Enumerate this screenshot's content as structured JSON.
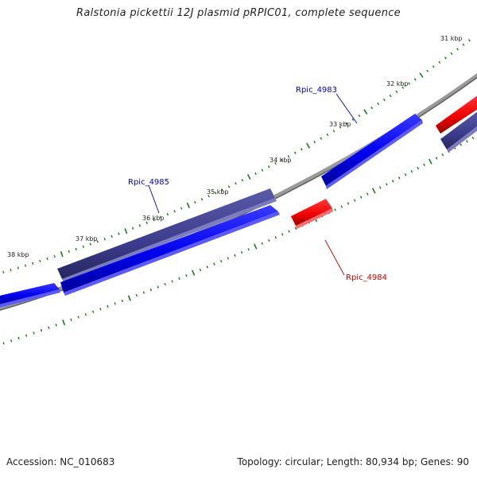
{
  "header": {
    "title": "Ralstonia pickettii 12J plasmid pRPIC01, complete sequence"
  },
  "footer": {
    "accession": "Accession: NC_010683",
    "topology": "Topology: circular; Length: 80,934 bp; Genes: 90"
  },
  "map": {
    "tick_labels": [
      "31 kbp",
      "32 kbp",
      "33 kbp",
      "34 kbp",
      "35 kbp",
      "36 kbp",
      "37 kbp",
      "38 kbp"
    ],
    "features": [
      {
        "label": "Rpic_4983",
        "strand": "forward",
        "color": "#0000ff"
      },
      {
        "label": "Rpic_4984",
        "strand": "reverse",
        "color": "#ff0000"
      },
      {
        "label": "Rpic_4985",
        "strand": "forward",
        "color": "#0000ff"
      }
    ],
    "colors": {
      "forward_cds": "#0000ff",
      "reverse_cds": "#ff0000",
      "orf_track": "#3c3c8c",
      "backbone": "#777777",
      "ticks": "#1a7a1a"
    }
  }
}
